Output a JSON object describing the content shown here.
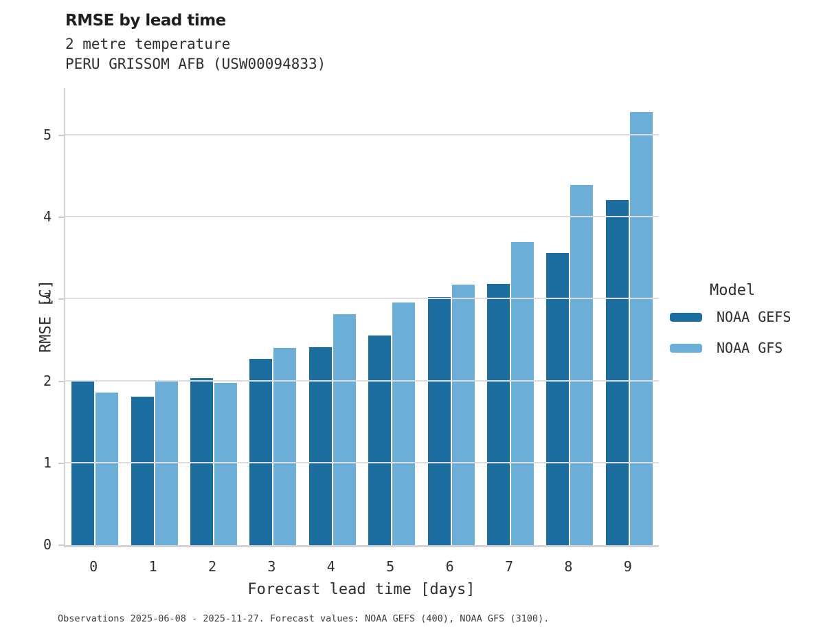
{
  "header": {
    "title": "RMSE by lead time",
    "subtitle_line1": "2 metre temperature",
    "subtitle_line2": "PERU GRISSOM AFB (USW00094833)"
  },
  "legend": {
    "title": "Model",
    "entries": [
      {
        "label": "NOAA GEFS",
        "color": "#1a6d9e"
      },
      {
        "label": "NOAA GFS",
        "color": "#6bafd8"
      }
    ]
  },
  "footer": {
    "note": "Observations 2025-06-08 - 2025-11-27. Forecast values: NOAA GEFS (400), NOAA GFS (3100)."
  },
  "colors": {
    "gefs_bar": "#1a6d9e",
    "gfs_bar": "#6bafd8",
    "gridline": "#dcdcdc",
    "axis_spine": "#d2d2d2",
    "text": "#2e2e2e"
  },
  "chart_data": {
    "type": "bar",
    "title": "RMSE by lead time",
    "subtitle": [
      "2 metre temperature",
      "PERU GRISSOM AFB (USW00094833)"
    ],
    "xlabel": "Forecast lead time [days]",
    "ylabel": "RMSE [C]",
    "categories": [
      "0",
      "1",
      "2",
      "3",
      "4",
      "5",
      "6",
      "7",
      "8",
      "9"
    ],
    "series": [
      {
        "name": "NOAA GEFS",
        "color": "#1a6d9e",
        "values": [
          2.0,
          1.81,
          2.04,
          2.27,
          2.42,
          2.56,
          3.03,
          3.19,
          3.57,
          4.21
        ]
      },
      {
        "name": "NOAA GFS",
        "color": "#6bafd8",
        "values": [
          1.86,
          2.0,
          1.98,
          2.41,
          2.82,
          2.96,
          3.18,
          3.7,
          4.4,
          5.29
        ]
      }
    ],
    "ylim": [
      0,
      5.58
    ],
    "yticks": [
      0,
      1,
      2,
      3,
      4,
      5
    ],
    "grid": "horizontal",
    "legend_title": "Model",
    "legend_position": "right",
    "caption": "Observations 2025-06-08 - 2025-11-27. Forecast values: NOAA GEFS (400), NOAA GFS (3100)."
  }
}
